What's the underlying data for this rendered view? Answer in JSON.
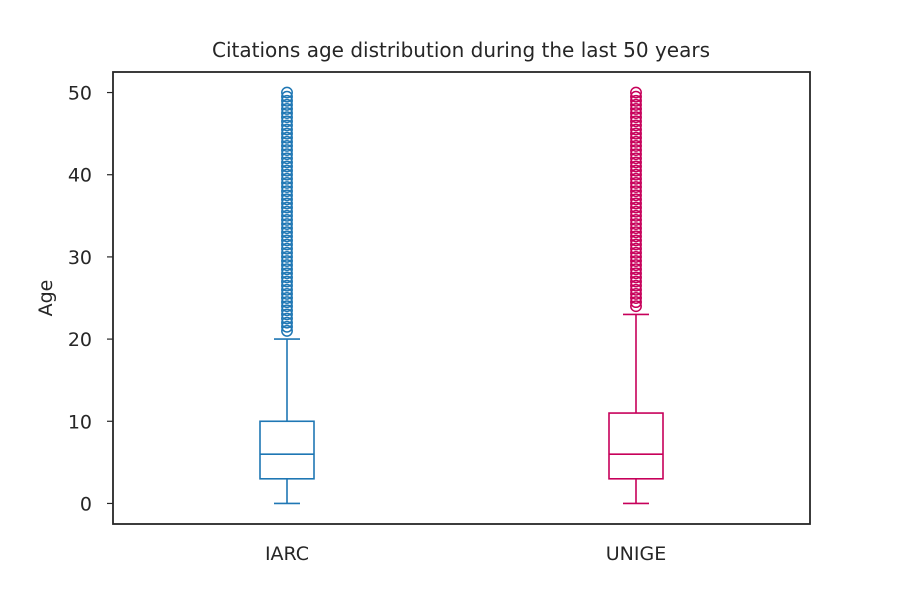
{
  "chart_data": {
    "type": "boxplot",
    "title": "Citations age distribution during the last 50 years",
    "xlabel": "",
    "ylabel": "Age",
    "ylim": [
      -2.5,
      52.5
    ],
    "yticks": [
      0,
      10,
      20,
      30,
      40,
      50
    ],
    "grid": false,
    "categories": [
      "IARC",
      "UNIGE"
    ],
    "series": [
      {
        "category": "IARC",
        "color": "#1f77b4",
        "min": 0,
        "q1": 3,
        "median": 6,
        "q3": 10,
        "max": 20,
        "outliers": [
          21,
          22,
          23,
          24,
          25,
          26,
          27,
          28,
          29,
          30,
          31,
          32,
          33,
          34,
          35,
          36,
          37,
          38,
          39,
          40,
          41,
          42,
          43,
          44,
          45,
          46,
          47,
          48,
          49,
          50
        ]
      },
      {
        "category": "UNIGE",
        "color": "#c7005a",
        "min": 0,
        "q1": 3,
        "median": 6,
        "q3": 11,
        "max": 23,
        "outliers": [
          24,
          25,
          26,
          27,
          28,
          29,
          30,
          31,
          32,
          33,
          34,
          35,
          36,
          37,
          38,
          39,
          40,
          41,
          42,
          43,
          44,
          45,
          46,
          47,
          48,
          49,
          50
        ]
      }
    ]
  }
}
